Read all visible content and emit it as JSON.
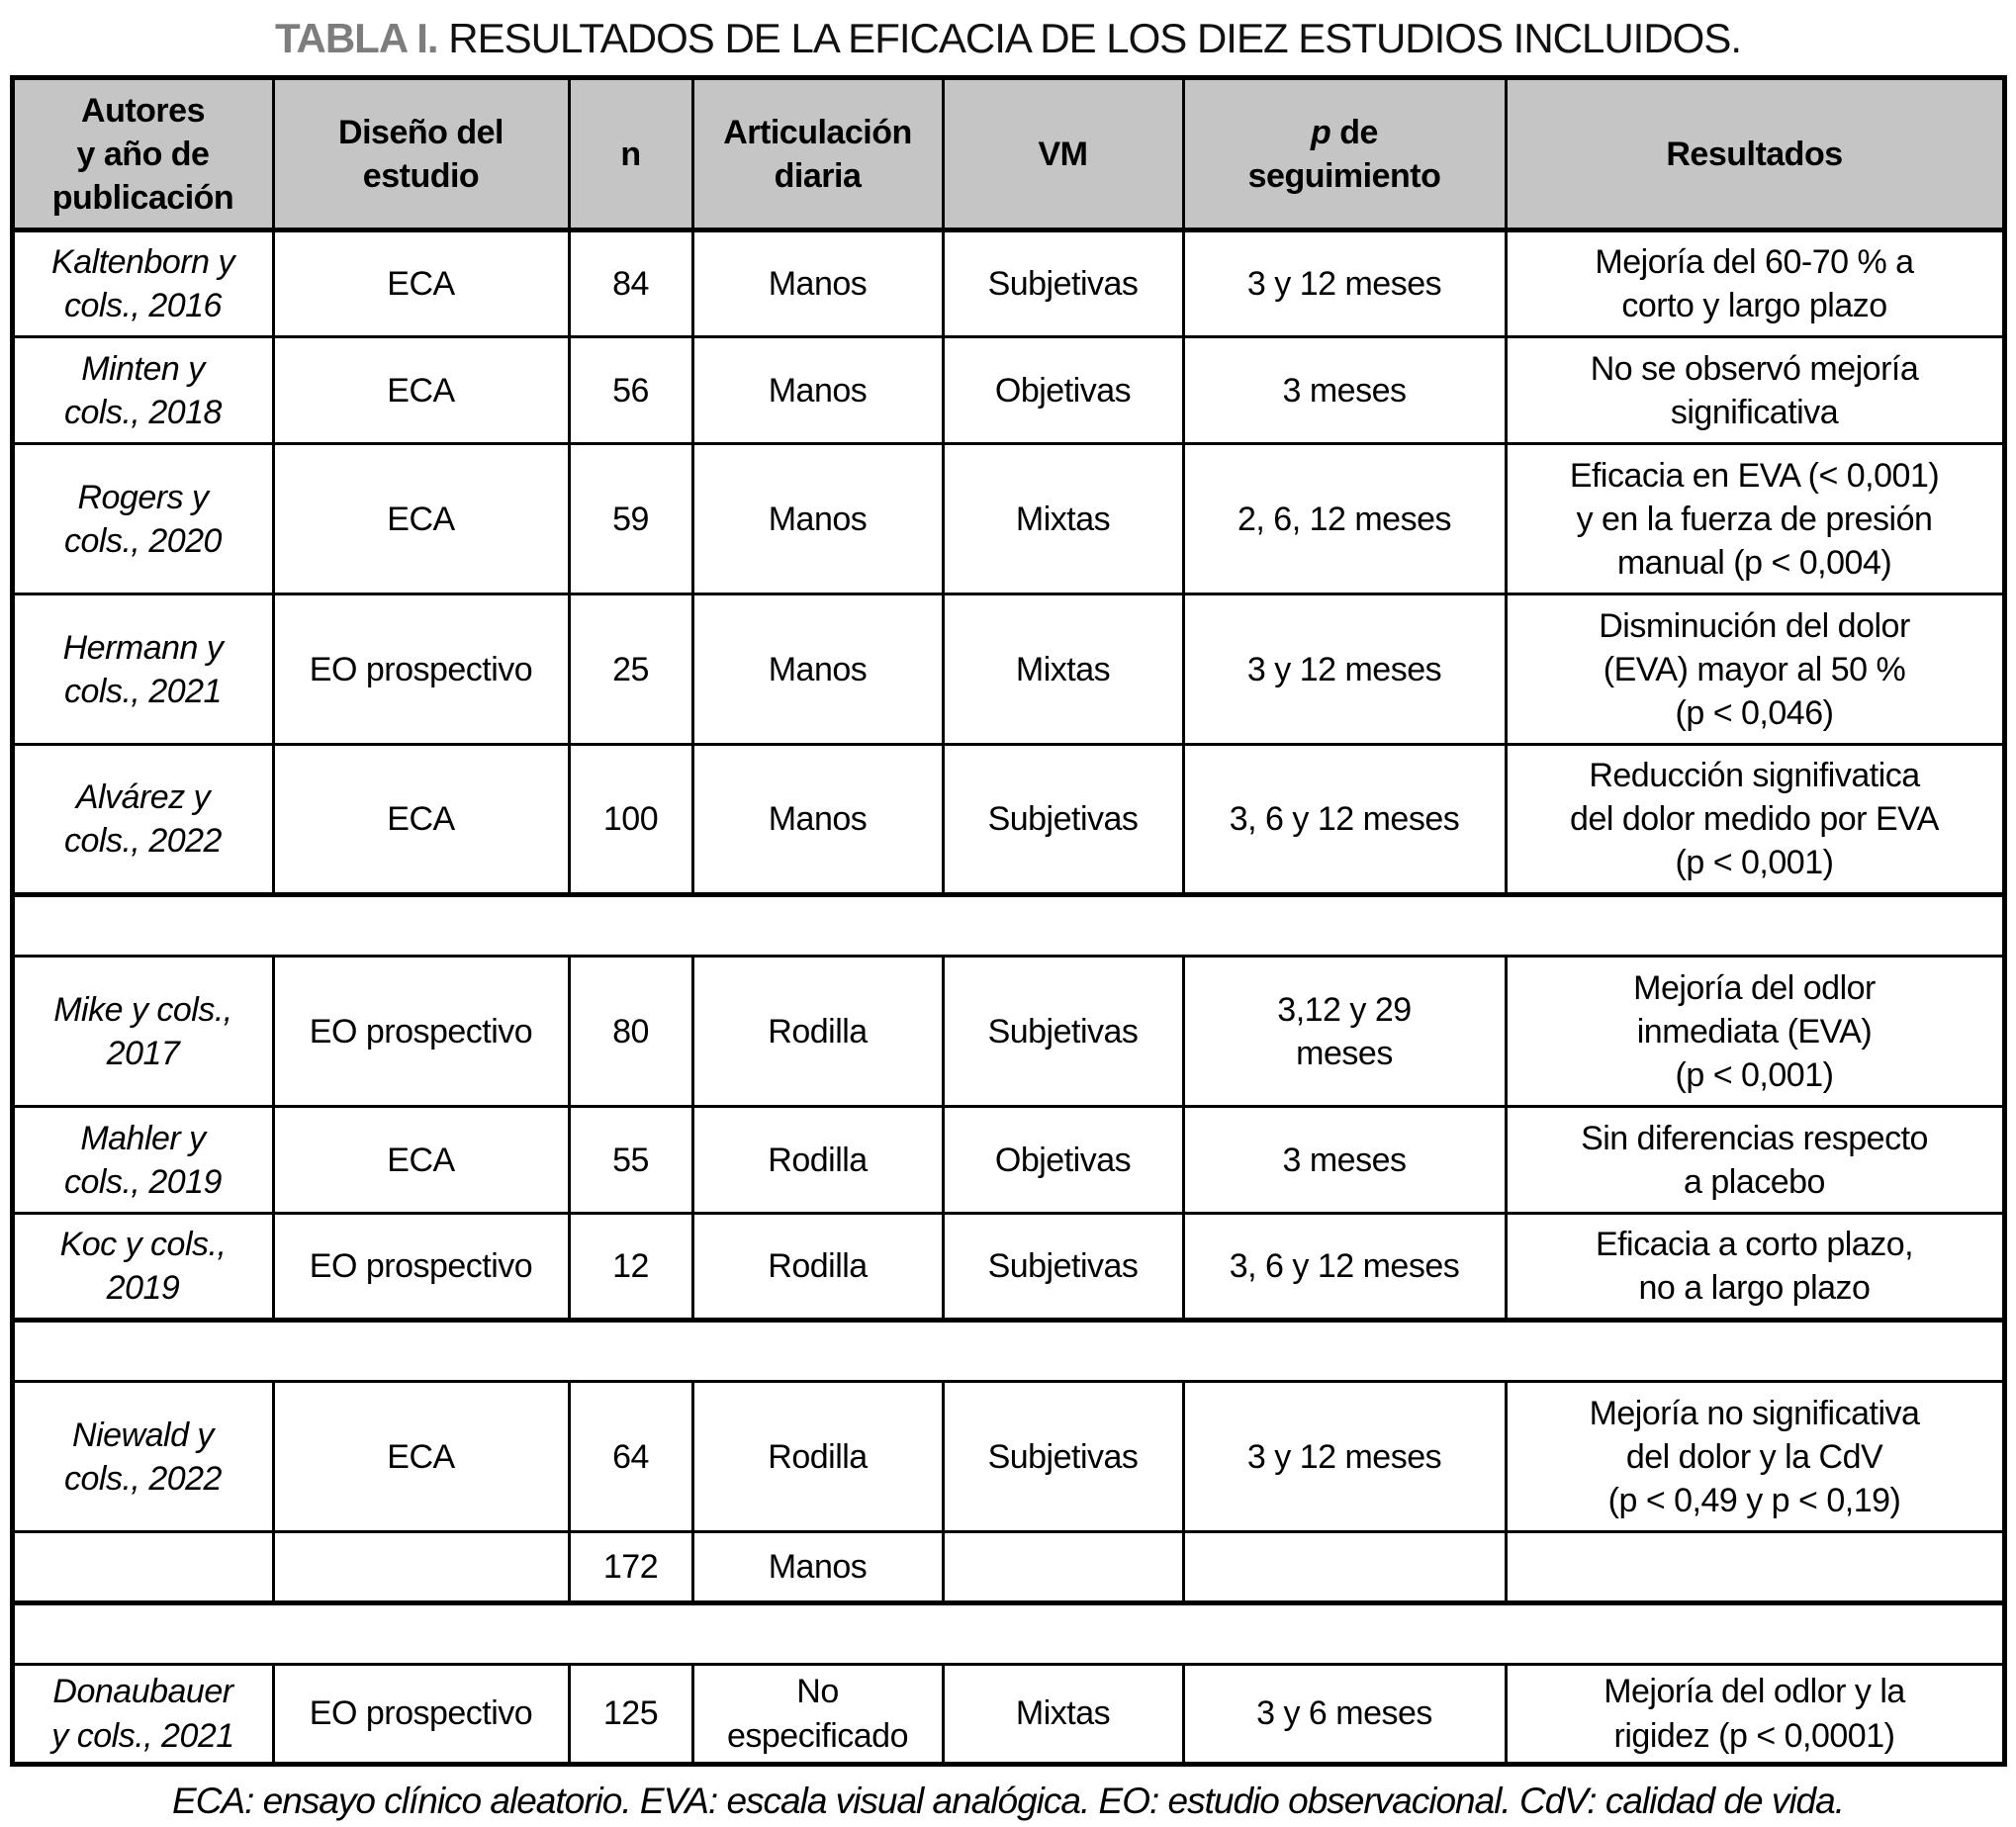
{
  "title": {
    "label": "TABLA I.",
    "text": "RESULTADOS DE LA EFICACIA DE LOS DIEZ ESTUDIOS INCLUIDOS."
  },
  "colors": {
    "header_background": "#c5c5c5",
    "title_label_gray": "#7d7d7d",
    "border_black": "#000000"
  },
  "table": {
    "headers": [
      "Autores\ny año de\npublicación",
      "Diseño del\nestudio",
      "n",
      "Articulación\ndiaria",
      "VM",
      {
        "italic": "p",
        "text": " de\nseguimiento"
      },
      "Resultados"
    ],
    "rows": [
      {
        "size": "short",
        "cells": [
          "Kaltenborn y\ncols., 2016",
          "ECA",
          "84",
          "Manos",
          "Subjetivas",
          "3 y 12 meses",
          "Mejoría del 60-70 % a\ncorto y largo plazo"
        ]
      },
      {
        "size": "short",
        "cells": [
          "Minten y\ncols., 2018",
          "ECA",
          "56",
          "Manos",
          "Objetivas",
          "3 meses",
          "No se observó mejoría\nsignificativa"
        ]
      },
      {
        "size": "tall",
        "cells": [
          "Rogers y\ncols., 2020",
          "ECA",
          "59",
          "Manos",
          "Mixtas",
          "2, 6, 12 meses",
          "Eficacia en EVA (< 0,001)\ny en la fuerza de presión\nmanual (p < 0,004)"
        ]
      },
      {
        "size": "tall",
        "cells": [
          "Hermann y\ncols., 2021",
          "EO prospectivo",
          "25",
          "Manos",
          "Mixtas",
          "3 y 12 meses",
          "Disminución del dolor\n(EVA) mayor al 50 %\n(p < 0,046)"
        ]
      },
      {
        "size": "tall",
        "section_end": true,
        "cells": [
          "Alvárez y\ncols., 2022",
          "ECA",
          "100",
          "Manos",
          "Subjetivas",
          "3, 6 y 12 meses",
          "Reducción signifivatica\ndel dolor medido por EVA\n(p < 0,001)"
        ]
      },
      {
        "separator": true,
        "size": "sep"
      },
      {
        "size": "tall",
        "cells": [
          "Mike y cols.,\n2017",
          "EO prospectivo",
          "80",
          "Rodilla",
          "Subjetivas",
          "3,12 y 29\nmeses",
          "Mejoría del odlor\ninmediata (EVA)\n(p < 0,001)"
        ]
      },
      {
        "size": "short",
        "cells": [
          "Mahler y\ncols., 2019",
          "ECA",
          "55",
          "Rodilla",
          "Objetivas",
          "3 meses",
          "Sin diferencias respecto\na placebo"
        ]
      },
      {
        "size": "short",
        "section_end": true,
        "cells": [
          "Koc y cols.,\n2019",
          "EO prospectivo",
          "12",
          "Rodilla",
          "Subjetivas",
          "3, 6 y 12 meses",
          "Eficacia a corto plazo,\nno a largo plazo"
        ]
      },
      {
        "separator": true,
        "size": "sep"
      },
      {
        "size": "tall",
        "cells": [
          "Niewald y\ncols., 2022",
          "ECA",
          "64",
          "Rodilla",
          "Subjetivas",
          "3 y 12 meses",
          "Mejoría no significativa\ndel dolor y la CdV\n(p < 0,49 y p < 0,19)"
        ]
      },
      {
        "size": "thin",
        "section_end": true,
        "cells": [
          "",
          "",
          "172",
          "Manos",
          "",
          "",
          ""
        ]
      },
      {
        "separator": true,
        "size": "sep"
      },
      {
        "size": "last",
        "cells": [
          "Donaubauer\ny cols., 2021",
          "EO prospectivo",
          "125",
          "No\nespecificado",
          "Mixtas",
          "3 y 6 meses",
          "Mejoría del odlor y la\nrigidez (p < 0,0001)"
        ]
      }
    ]
  },
  "footnote": "ECA: ensayo clínico aleatorio. EVA: escala visual analógica. EO: estudio observacional. CdV: calidad de vida."
}
